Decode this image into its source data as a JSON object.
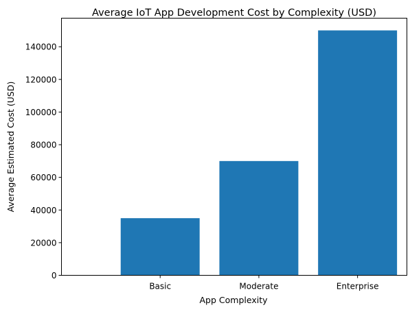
{
  "chart_data": {
    "type": "bar",
    "title": "Average IoT App Development Cost by Complexity (USD)",
    "xlabel": "App Complexity",
    "ylabel": "Average Estimated Cost (USD)",
    "categories": [
      "Basic",
      "Moderate",
      "Enterprise"
    ],
    "values": [
      35000,
      70000,
      150000
    ],
    "ylim": [
      0,
      157500
    ],
    "yticks": [
      0,
      20000,
      40000,
      60000,
      80000,
      100000,
      120000,
      140000
    ],
    "grid": false,
    "legend": "none",
    "bar_color": "#1f77b4"
  }
}
